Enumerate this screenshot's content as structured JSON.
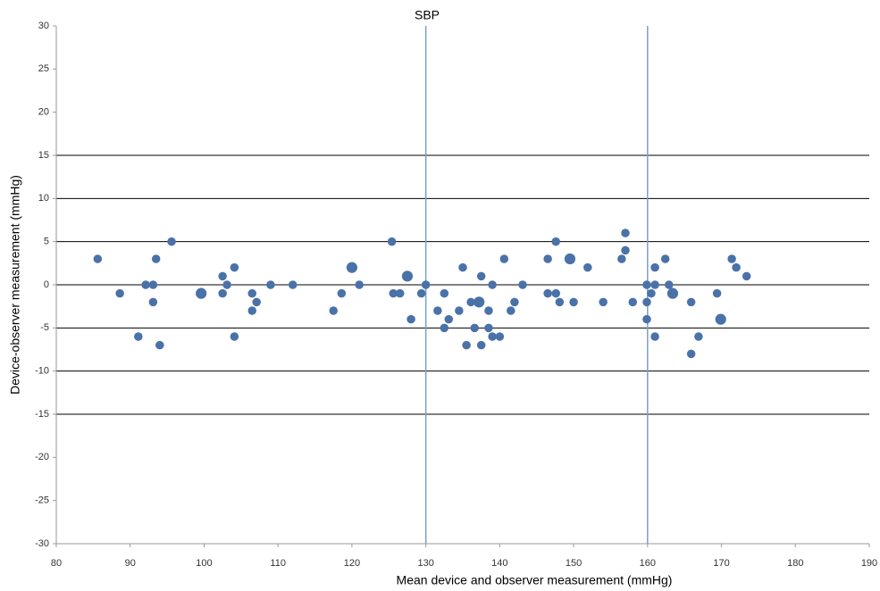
{
  "chart_data": {
    "type": "bubble",
    "title": "SBP",
    "x_label": "Mean device and observer measurement (mmHg)",
    "y_label": "Device-observer measurement (mmHg)",
    "xlim": [
      80,
      190
    ],
    "xticks": [
      80,
      90,
      100,
      110,
      120,
      130,
      140,
      150,
      160,
      170,
      180,
      190
    ],
    "ylim": [
      -30,
      30
    ],
    "yticks": [
      -30,
      -25,
      -20,
      -15,
      -10,
      -5,
      0,
      5,
      10,
      15,
      20,
      25,
      30
    ],
    "grid_lines_y": [
      -15,
      -10,
      -5,
      0,
      5,
      10,
      15
    ],
    "grid_color": "#000000",
    "reference_lines_x": [
      130,
      160
    ],
    "reference_color": "#7aa0c8",
    "series": [
      {
        "color": "#4a72a8",
        "x": [
          85.6,
          88.6,
          91.1,
          92.1,
          93.1,
          93.1,
          93.5,
          94.0,
          95.6,
          99.6,
          102.5,
          102.5,
          103.1,
          104.1,
          104.1,
          106.5,
          106.5,
          107.1,
          109.0,
          112.0,
          117.5,
          118.6,
          120.0,
          121.0,
          125.4,
          125.6,
          126.5,
          127.5,
          128.0,
          129.4,
          130.0,
          131.6,
          132.5,
          132.5,
          133.1,
          134.5,
          135.0,
          135.5,
          136.1,
          136.6,
          137.2,
          137.5,
          137.5,
          138.5,
          138.5,
          139.0,
          139.0,
          140.0,
          140.6,
          141.5,
          142.0,
          143.1,
          146.5,
          146.5,
          147.6,
          147.6,
          148.1,
          149.5,
          150.0,
          151.9,
          154.0,
          156.5,
          157.0,
          157.0,
          158.0,
          159.9,
          159.9,
          159.9,
          160.5,
          161.0,
          161.0,
          161.0,
          162.4,
          162.9,
          163.4,
          165.9,
          165.9,
          166.9,
          169.4,
          169.9,
          171.4,
          172.0,
          173.4
        ],
        "y": [
          3,
          -1,
          -6,
          0,
          0,
          -2,
          3,
          -7,
          5,
          -1,
          1,
          -1,
          0,
          2,
          -6,
          -1,
          -3,
          -2,
          0,
          0,
          -3,
          -1,
          2,
          0,
          5,
          -1,
          -1,
          1,
          -4,
          -1,
          0,
          -3,
          -1,
          -5,
          -4,
          -3,
          2,
          -7,
          -2,
          -5,
          -2,
          1,
          -7,
          -3,
          -5,
          0,
          -6,
          -6,
          3,
          -3,
          -2,
          0,
          3,
          -1,
          5,
          -1,
          -2,
          3,
          -2,
          2,
          -2,
          3,
          6,
          4,
          -2,
          0,
          -2,
          -4,
          -1,
          2,
          0,
          -6,
          3,
          0,
          -1,
          -2,
          -8,
          -6,
          -1,
          -4,
          3,
          2,
          1
        ],
        "sizes": [
          1,
          1,
          1,
          1,
          1,
          1,
          1,
          1,
          1,
          2,
          1,
          1,
          1,
          1,
          1,
          1,
          1,
          1,
          1,
          1,
          1,
          1,
          2,
          1,
          1,
          1,
          1,
          2,
          1,
          1,
          1,
          1,
          1,
          1,
          1,
          1,
          1,
          1,
          1,
          1,
          2,
          1,
          1,
          1,
          1,
          1,
          1,
          1,
          1,
          1,
          1,
          1,
          1,
          1,
          1,
          1,
          1,
          2,
          1,
          1,
          1,
          1,
          1,
          1,
          1,
          1,
          1,
          1,
          1,
          1,
          1,
          1,
          1,
          1,
          2,
          1,
          1,
          1,
          1,
          2,
          1,
          1,
          1
        ]
      }
    ]
  }
}
